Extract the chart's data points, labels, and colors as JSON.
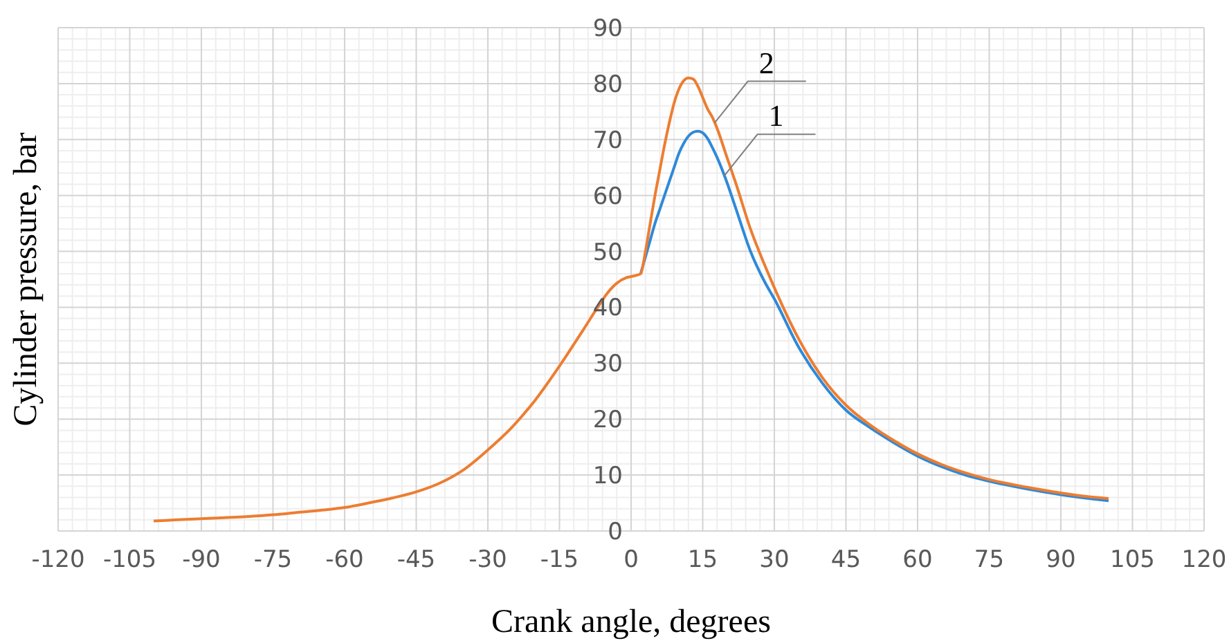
{
  "chart_data": {
    "type": "line",
    "xlabel": "Crank angle, degrees",
    "ylabel": "Cylinder pressure, bar",
    "x": [
      -100,
      -95,
      -90,
      -80,
      -75,
      -70,
      -65,
      -60,
      -55,
      -50,
      -45,
      -40,
      -35,
      -30,
      -25,
      -20,
      -15,
      -10,
      -7,
      -5,
      -3,
      -1,
      0,
      1,
      2,
      3,
      4,
      5,
      6,
      7,
      8,
      9,
      10,
      11,
      12,
      13,
      14,
      15,
      16,
      17,
      18,
      20,
      22,
      25,
      28,
      30,
      35,
      40,
      45,
      50,
      55,
      60,
      65,
      70,
      75,
      80,
      85,
      90,
      95,
      100
    ],
    "series": [
      {
        "color": "#2f89d8",
        "values": [
          null,
          null,
          null,
          null,
          null,
          null,
          null,
          null,
          null,
          null,
          null,
          null,
          null,
          null,
          null,
          null,
          null,
          null,
          null,
          null,
          null,
          null,
          null,
          null,
          46,
          49,
          52,
          55,
          57.5,
          60,
          62.5,
          65,
          67.5,
          69.3,
          70.6,
          71.3,
          71.5,
          71.2,
          70.2,
          68.6,
          66.8,
          62.5,
          57.5,
          50,
          44.5,
          41.5,
          33,
          26.5,
          21.6,
          18.5,
          15.8,
          13.4,
          11.5,
          10,
          8.9,
          8,
          7.2,
          6.5,
          5.9,
          5.4
        ]
      },
      {
        "color": "#ed7d31",
        "values": [
          1.8,
          2,
          2.2,
          2.6,
          2.9,
          3.3,
          3.7,
          4.2,
          5,
          5.9,
          7,
          8.6,
          11,
          14.5,
          18.5,
          23.5,
          29.5,
          36,
          40,
          42.5,
          44.3,
          45.3,
          45.5,
          45.7,
          46,
          50,
          55,
          60,
          64.5,
          69,
          73,
          76.5,
          79,
          80.5,
          81,
          80.8,
          79.5,
          77.5,
          75.5,
          74,
          72,
          67,
          62,
          54,
          47.5,
          43.5,
          34.5,
          27.5,
          22.5,
          19,
          16.2,
          13.8,
          11.9,
          10.4,
          9.2,
          8.3,
          7.5,
          6.8,
          6.2,
          5.8
        ]
      }
    ],
    "xlim": [
      -120,
      120
    ],
    "xticks": [
      -120,
      -105,
      -90,
      -75,
      -60,
      -45,
      -30,
      -15,
      0,
      15,
      30,
      45,
      60,
      75,
      90,
      105,
      120
    ],
    "ylim": [
      0,
      90
    ],
    "yticks": [
      0,
      10,
      20,
      30,
      40,
      50,
      60,
      70,
      80,
      90
    ],
    "grid": true,
    "marker": "none",
    "line_style": "solid",
    "annotations": [
      {
        "text": "2",
        "x": 17.5,
        "y": 73
      },
      {
        "text": "1",
        "x": 19.5,
        "y": 63.5
      }
    ]
  }
}
